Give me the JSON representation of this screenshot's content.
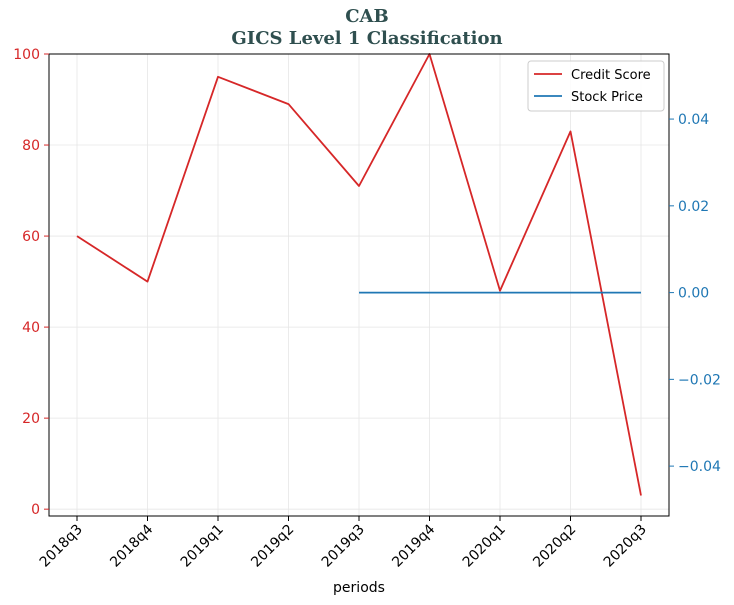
{
  "chart_data": {
    "type": "line",
    "title": "CAB",
    "subtitle": "GICS Level 1 Classification",
    "xlabel": "periods",
    "categories": [
      "2018q3",
      "2018q4",
      "2019q1",
      "2019q2",
      "2019q3",
      "2019q4",
      "2020q1",
      "2020q2",
      "2020q3"
    ],
    "left_axis": {
      "ylim": [
        -1.5,
        100
      ],
      "ticks": [
        0,
        20,
        40,
        60,
        80,
        100
      ],
      "color": "#d62728"
    },
    "right_axis": {
      "ylim": [
        -0.0515,
        0.055
      ],
      "ticks": [
        -0.04,
        -0.02,
        0.0,
        0.02,
        0.04
      ],
      "tick_labels": [
        "−0.04",
        "−0.02",
        "0.00",
        "0.02",
        "0.04"
      ],
      "color": "#1f77b4"
    },
    "series": [
      {
        "name": "Credit Score",
        "axis": "left",
        "color": "#d62728",
        "values": [
          60,
          50,
          95,
          89,
          71,
          100,
          48,
          83,
          3
        ]
      },
      {
        "name": "Stock Price",
        "axis": "right",
        "color": "#1f77b4",
        "values": [
          null,
          null,
          null,
          null,
          0.0,
          0.0,
          0.0,
          0.0,
          0.0
        ]
      }
    ],
    "grid": true,
    "legend": "top-right"
  }
}
